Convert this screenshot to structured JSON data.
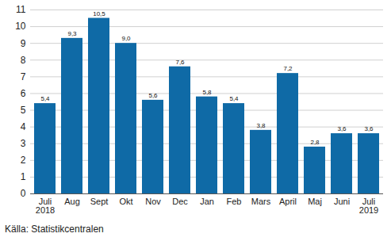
{
  "chart_data": {
    "type": "bar",
    "categories": [
      "Juli\n2018",
      "Aug",
      "Sept",
      "Okt",
      "Nov",
      "Dec",
      "Jan",
      "Feb",
      "Mars",
      "April",
      "Maj",
      "Juni",
      "Juli\n2019"
    ],
    "values": [
      5.4,
      9.3,
      10.5,
      9.0,
      5.6,
      7.6,
      5.8,
      5.4,
      3.8,
      7.2,
      2.8,
      3.6,
      3.6
    ],
    "value_labels": [
      "5,4",
      "9,3",
      "10,5",
      "9,0",
      "5,6",
      "7,6",
      "5,8",
      "5,4",
      "3,8",
      "7,2",
      "2,8",
      "3,6",
      "3,6"
    ],
    "color": "#0f6aa6",
    "ylim": [
      0,
      11
    ],
    "yticks": [
      0,
      1,
      2,
      3,
      4,
      5,
      6,
      7,
      8,
      9,
      10,
      11
    ],
    "grid": true,
    "data_labels": true,
    "caption": "Källa: Statistikcentralen"
  }
}
